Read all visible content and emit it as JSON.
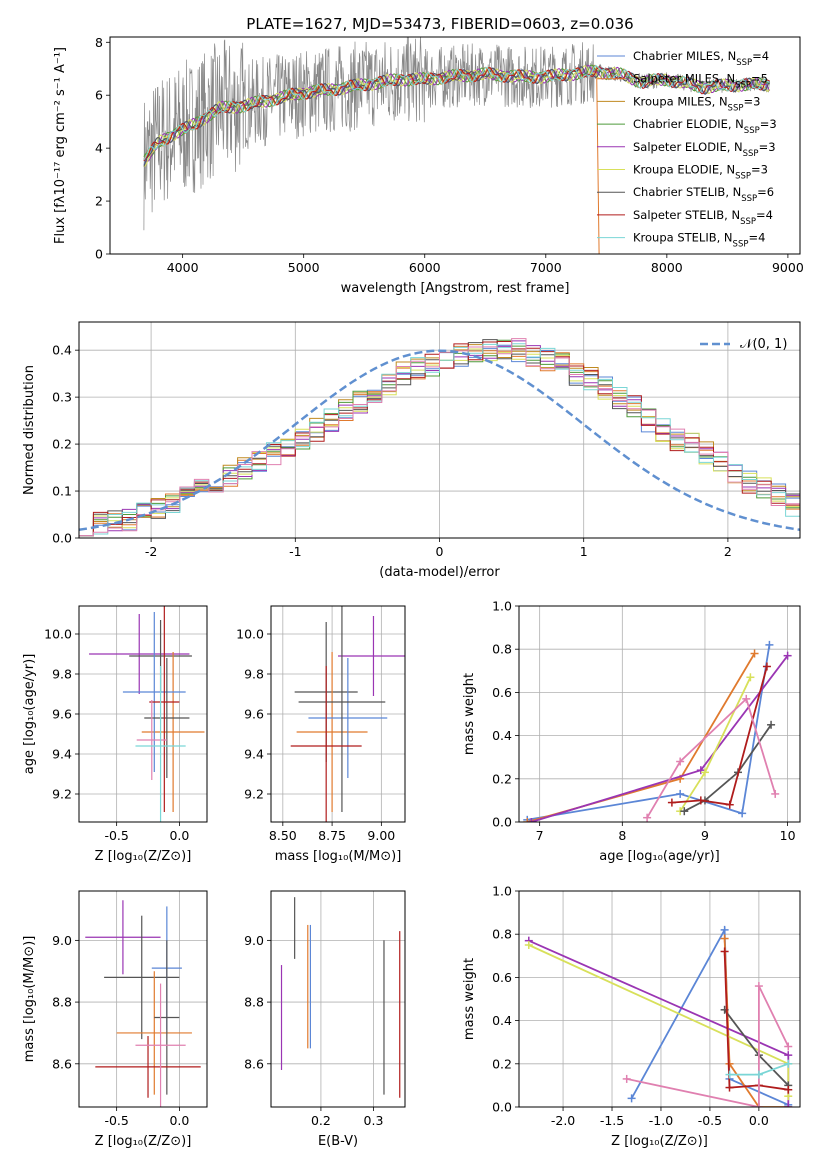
{
  "figure": {
    "title": "PLATE=1627, MJD=53473, FIBERID=0603, z=0.036"
  },
  "colors": {
    "Chabrier MILES": "#5b86d6",
    "Salpeter MILES": "#e07a2e",
    "Kroupa MILES": "#c08a20",
    "Chabrier ELODIE": "#4e9a3a",
    "Salpeter ELODIE": "#9a35b3",
    "Kroupa ELODIE": "#d8e05a",
    "Chabrier STELIB": "#555555",
    "Salpeter STELIB": "#b01c1c",
    "Kroupa STELIB": "#7ad6d6",
    "extra_pink": "#e080b0",
    "data": "#888888",
    "normal": "#6090d0"
  },
  "chart_data": [
    {
      "type": "line",
      "panel": "spectrum",
      "title": "PLATE=1627, MJD=53473, FIBERID=0603, z=0.036",
      "xlabel": "wavelength [Angstrom, rest frame]",
      "ylabel": "Flux [fλ10⁻¹⁷ erg cm⁻² s⁻¹ A⁻¹]",
      "xlim": [
        3400,
        9100
      ],
      "ylim": [
        0,
        8.2
      ],
      "xticks": [
        4000,
        5000,
        6000,
        7000,
        8000,
        9000
      ],
      "yticks": [
        0,
        2,
        4,
        6,
        8
      ],
      "legend_position": "top-right",
      "legend": [
        "Chabrier MILES, N_SSP=4",
        "Salpeter MILES, N_SSP=5",
        "Kroupa MILES, N_SSP=3",
        "Chabrier ELODIE, N_SSP=3",
        "Salpeter ELODIE, N_SSP=3",
        "Kroupa ELODIE, N_SSP=3",
        "Chabrier STELIB, N_SSP=6",
        "Salpeter STELIB, N_SSP=4",
        "Kroupa STELIB, N_SSP=4"
      ],
      "model_wavelength": [
        3680,
        3800,
        3950,
        4100,
        4300,
        4500,
        4800,
        5000,
        5200,
        5500,
        5800,
        6000,
        6200,
        6500,
        6800,
        7000,
        7200,
        7400,
        7600,
        7800,
        8000,
        8300,
        8600,
        8850
      ],
      "model_flux": [
        3.5,
        4.2,
        4.6,
        4.9,
        5.5,
        5.6,
        5.9,
        6.1,
        6.2,
        6.4,
        6.6,
        6.6,
        6.7,
        6.8,
        6.7,
        6.7,
        6.8,
        6.9,
        6.8,
        6.5,
        6.6,
        6.3,
        6.4,
        6.4
      ]
    },
    {
      "type": "histogram",
      "panel": "residuals",
      "xlabel": "(data-model)/error",
      "ylabel": "Normed distribution",
      "xlim": [
        -2.5,
        2.5
      ],
      "ylim": [
        0,
        0.46
      ],
      "xticks": [
        -2,
        -1,
        0,
        1,
        2
      ],
      "yticks": [
        0.0,
        0.1,
        0.2,
        0.3,
        0.4
      ],
      "legend": [
        "𝒩(0, 1)"
      ],
      "normal": {
        "mu": 0,
        "sigma": 1
      },
      "bin_edges_start": -2.5,
      "bin_width": 0.1,
      "bin_values": [
        0.03,
        0.03,
        0.04,
        0.04,
        0.05,
        0.06,
        0.07,
        0.09,
        0.1,
        0.12,
        0.13,
        0.15,
        0.16,
        0.18,
        0.19,
        0.21,
        0.23,
        0.25,
        0.27,
        0.29,
        0.31,
        0.33,
        0.35,
        0.36,
        0.37,
        0.38,
        0.39,
        0.4,
        0.4,
        0.4,
        0.4,
        0.39,
        0.38,
        0.37,
        0.35,
        0.34,
        0.32,
        0.3,
        0.28,
        0.25,
        0.23,
        0.21,
        0.2,
        0.18,
        0.16,
        0.14,
        0.12,
        0.11,
        0.09,
        0.07,
        0.06,
        0.05,
        0.04,
        0.03,
        0.03
      ]
    },
    {
      "type": "scatter",
      "panel": "age_vs_Z",
      "xlabel": "Z [log₁₀(Z/Z⊙)]",
      "ylabel": "age  [log₁₀(age/yr)]",
      "xlim": [
        -0.8,
        0.22
      ],
      "ylim": [
        9.06,
        10.14
      ],
      "xticks": [
        -0.5,
        0.0
      ],
      "yticks": [
        9.2,
        9.4,
        9.6,
        9.8,
        10.0
      ],
      "points": [
        {
          "x": -0.32,
          "y": 9.9,
          "xerr": 0.4,
          "yerr": 0.2
        },
        {
          "x": -0.15,
          "y": 9.89,
          "xerr": 0.25,
          "yerr": 0.18
        },
        {
          "x": -0.05,
          "y": 9.51,
          "xerr": 0.25,
          "yerr": 0.4
        },
        {
          "x": -0.2,
          "y": 9.71,
          "xerr": 0.25,
          "yerr": 0.4
        },
        {
          "x": -0.1,
          "y": 9.58,
          "xerr": 0.18,
          "yerr": 0.3
        },
        {
          "x": -0.12,
          "y": 9.66,
          "xerr": 0.12,
          "yerr": 0.55
        },
        {
          "x": -0.22,
          "y": 9.47,
          "xerr": 0.12,
          "yerr": 0.2
        },
        {
          "x": -0.15,
          "y": 9.44,
          "xerr": 0.2,
          "yerr": 0.4
        }
      ]
    },
    {
      "type": "scatter",
      "panel": "age_vs_mass",
      "xlabel": "mass [log₁₀(M/M⊙)]",
      "ylabel": "",
      "xlim": [
        8.44,
        9.12
      ],
      "ylim": [
        9.06,
        10.14
      ],
      "xticks": [
        8.5,
        8.75,
        9.0
      ],
      "yticks": [
        9.2,
        9.4,
        9.6,
        9.8,
        10.0
      ],
      "points": [
        {
          "x": 8.96,
          "y": 9.89,
          "xerr": 0.18,
          "yerr": 0.2
        },
        {
          "x": 8.72,
          "y": 9.71,
          "xerr": 0.16,
          "yerr": 0.35
        },
        {
          "x": 8.75,
          "y": 9.51,
          "xerr": 0.18,
          "yerr": 0.4
        },
        {
          "x": 8.83,
          "y": 9.58,
          "xerr": 0.2,
          "yerr": 0.3
        },
        {
          "x": 8.8,
          "y": 9.66,
          "xerr": 0.22,
          "yerr": 0.55
        },
        {
          "x": 8.72,
          "y": 9.44,
          "xerr": 0.18,
          "yerr": 0.4
        }
      ]
    },
    {
      "type": "line",
      "panel": "mass_weight_vs_age",
      "xlabel": "age  [log₁₀(age/yr)]",
      "ylabel": "mass weight",
      "xlim": [
        6.75,
        10.15
      ],
      "ylim": [
        0,
        1.0
      ],
      "xticks": [
        7,
        8,
        9,
        10
      ],
      "yticks": [
        0.0,
        0.2,
        0.4,
        0.6,
        0.8,
        1.0
      ],
      "series": [
        {
          "x": [
            6.85,
            8.7,
            9.45,
            9.78
          ],
          "y": [
            0.01,
            0.13,
            0.04,
            0.82
          ]
        },
        {
          "x": [
            6.85,
            8.7,
            9.6
          ],
          "y": [
            0.0,
            0.2,
            0.78
          ]
        },
        {
          "x": [
            6.9,
            8.95,
            10.0
          ],
          "y": [
            0.0,
            0.24,
            0.77
          ]
        },
        {
          "x": [
            8.7,
            9.0,
            9.55
          ],
          "y": [
            0.05,
            0.23,
            0.67
          ]
        },
        {
          "x": [
            8.75,
            9.0,
            9.4,
            9.8
          ],
          "y": [
            0.05,
            0.1,
            0.23,
            0.45
          ]
        },
        {
          "x": [
            8.6,
            8.95,
            9.3,
            9.75
          ],
          "y": [
            0.09,
            0.1,
            0.08,
            0.72
          ]
        },
        {
          "x": [
            8.3,
            8.7,
            9.5,
            9.85
          ],
          "y": [
            0.02,
            0.28,
            0.57,
            0.13
          ]
        }
      ]
    },
    {
      "type": "scatter",
      "panel": "mass_vs_Z",
      "xlabel": "Z [log₁₀(Z/Z⊙)]",
      "ylabel": "mass [log₁₀(M/M⊙)]",
      "xlim": [
        -0.8,
        0.22
      ],
      "ylim": [
        8.46,
        9.16
      ],
      "xticks": [
        -0.5,
        0.0
      ],
      "yticks": [
        8.6,
        8.8,
        9.0
      ],
      "points": [
        {
          "x": -0.45,
          "y": 9.01,
          "xerr": 0.3,
          "yerr": 0.12
        },
        {
          "x": -0.3,
          "y": 8.88,
          "xerr": 0.3,
          "yerr": 0.2
        },
        {
          "x": -0.2,
          "y": 8.7,
          "xerr": 0.3,
          "yerr": 0.2
        },
        {
          "x": -0.1,
          "y": 8.91,
          "xerr": 0.12,
          "yerr": 0.2
        },
        {
          "x": -0.1,
          "y": 8.75,
          "xerr": 0.1,
          "yerr": 0.25
        },
        {
          "x": -0.25,
          "y": 8.59,
          "xerr": 0.42,
          "yerr": 0.1
        },
        {
          "x": -0.15,
          "y": 8.66,
          "xerr": 0.2,
          "yerr": 0.2
        }
      ]
    },
    {
      "type": "scatter",
      "panel": "mass_vs_EBV",
      "xlabel": "E(B-V)",
      "ylabel": "",
      "xlim": [
        0.105,
        0.36
      ],
      "ylim": [
        8.46,
        9.16
      ],
      "xticks": [
        0.2,
        0.3
      ],
      "yticks": [
        8.6,
        8.8,
        9.0
      ],
      "points": [
        {
          "x": 0.125,
          "y": 8.75,
          "xerr": 0,
          "yerr": 0.17
        },
        {
          "x": 0.15,
          "y": 9.04,
          "xerr": 0,
          "yerr": 0.1
        },
        {
          "x": 0.175,
          "y": 8.85,
          "xerr": 0,
          "yerr": 0.2
        },
        {
          "x": 0.18,
          "y": 8.85,
          "xerr": 0,
          "yerr": 0.2
        },
        {
          "x": 0.32,
          "y": 8.75,
          "xerr": 0,
          "yerr": 0.25
        },
        {
          "x": 0.35,
          "y": 8.76,
          "xerr": 0,
          "yerr": 0.27
        }
      ]
    },
    {
      "type": "line",
      "panel": "mass_weight_vs_Z",
      "xlabel": "Z [log₁₀(Z/Z⊙)]",
      "ylabel": "mass weight",
      "xlim": [
        -2.45,
        0.42
      ],
      "ylim": [
        0,
        1.0
      ],
      "xticks": [
        -2.0,
        -1.5,
        -1.0,
        -0.5,
        0.0
      ],
      "yticks": [
        0.0,
        0.2,
        0.4,
        0.6,
        0.8,
        1.0
      ],
      "series": [
        {
          "x": [
            -1.3,
            -0.35,
            -0.3,
            0.3
          ],
          "y": [
            0.04,
            0.82,
            0.13,
            0.01
          ]
        },
        {
          "x": [
            -0.35,
            -0.3,
            0.0,
            0.3
          ],
          "y": [
            0.78,
            0.2,
            0.0,
            0.0
          ]
        },
        {
          "x": [
            -2.35,
            0.3,
            0.3
          ],
          "y": [
            0.77,
            0.24,
            0.0
          ]
        },
        {
          "x": [
            -2.35,
            0.3,
            0.3
          ],
          "y": [
            0.75,
            0.2,
            0.05
          ]
        },
        {
          "x": [
            -0.35,
            0.0,
            0.3
          ],
          "y": [
            0.45,
            0.24,
            0.1
          ]
        },
        {
          "x": [
            -0.35,
            -0.3,
            0.0,
            0.3
          ],
          "y": [
            0.72,
            0.09,
            0.1,
            0.08
          ]
        },
        {
          "x": [
            -1.35,
            0.0,
            0.0,
            0.3
          ],
          "y": [
            0.13,
            0.0,
            0.56,
            0.28
          ]
        },
        {
          "x": [
            -0.3,
            0.0,
            0.3
          ],
          "y": [
            0.15,
            0.15,
            0.2
          ]
        }
      ]
    }
  ]
}
